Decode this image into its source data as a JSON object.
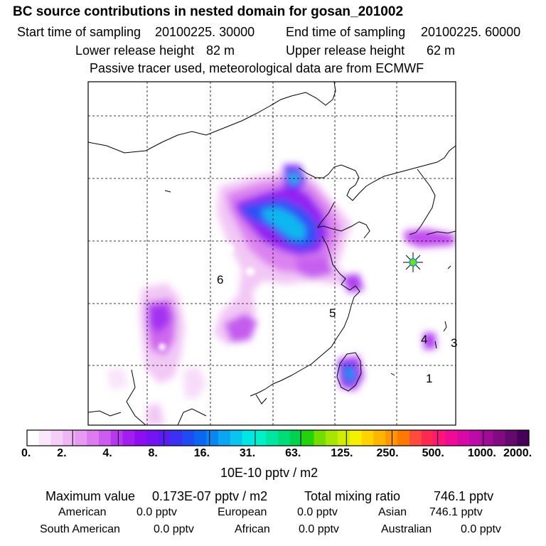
{
  "header": {
    "title": "BC  source contributions in nested domain for gosan_201002",
    "start_label": "Start time of sampling",
    "start_value": "20100225. 30000",
    "end_label": "End time of sampling",
    "end_value": "20100225. 60000",
    "lower_label": "Lower release height",
    "lower_value": "82 m",
    "upper_label": "Upper release height",
    "upper_value": "62 m",
    "note": "Passive tracer used, meteorological data are from ECMWF"
  },
  "map": {
    "region_labels": [
      "6",
      "5",
      "4",
      "3",
      "1"
    ],
    "receptor_marker": "gosan-receptor"
  },
  "colorbar": {
    "unit": "10E-10 pptv / m2",
    "tick_labels": [
      "0.",
      "2.",
      "4.",
      "8.",
      "16.",
      "31.",
      "63.",
      "125.",
      "250.",
      "500.",
      "1000.",
      "2000."
    ],
    "colors": [
      "#ffffff",
      "#fbe7fb",
      "#f5cff7",
      "#efb5f5",
      "#e69af2",
      "#dc7cf0",
      "#cc5cf0",
      "#b838f2",
      "#a51cf0",
      "#8c0ff2",
      "#7414f5",
      "#5a1cf5",
      "#3c30f5",
      "#1f4bf5",
      "#0a67f2",
      "#0a86f2",
      "#0aa6f2",
      "#0ac4f0",
      "#00e6e6",
      "#00f0c8",
      "#00e6a0",
      "#00dd78",
      "#00d250",
      "#22d20a",
      "#73dc00",
      "#a8e600",
      "#d2ed00",
      "#f5f000",
      "#ffd200",
      "#ffb400",
      "#ff9600",
      "#ff7800",
      "#ff4b3c",
      "#ff2850",
      "#ff1478",
      "#f00a96",
      "#d70aa5",
      "#be0aaa",
      "#a00a96",
      "#820a82",
      "#640a6e",
      "#46005a"
    ]
  },
  "chart_data": {
    "type": "heatmap",
    "title": "BC  source contributions in nested domain for gosan_201002",
    "unit": "10E-10 pptv / m2",
    "scale_levels": [
      0,
      2,
      4,
      8,
      16,
      31,
      63,
      125,
      250,
      500,
      1000,
      2000
    ],
    "maximum_value": "0.173E-07 pptv / m2",
    "total_mixing_ratio_pptv": 746.1,
    "contributions_pptv": {
      "American": 0.0,
      "European": 0.0,
      "Asian": 746.1,
      "South American": 0.0,
      "African": 0.0,
      "Australian": 0.0
    }
  },
  "footer": {
    "max_label": "Maximum value",
    "max_value": "0.173E-07 pptv / m2",
    "total_label": "Total mixing ratio",
    "total_value": "746.1 pptv",
    "regions": [
      {
        "name": "American",
        "value": "0.0 pptv"
      },
      {
        "name": "European",
        "value": "0.0 pptv"
      },
      {
        "name": "Asian",
        "value": "746.1 pptv"
      },
      {
        "name": "South American",
        "value": "0.0 pptv"
      },
      {
        "name": "African",
        "value": "0.0 pptv"
      },
      {
        "name": "Australian",
        "value": "0.0 pptv"
      }
    ]
  }
}
